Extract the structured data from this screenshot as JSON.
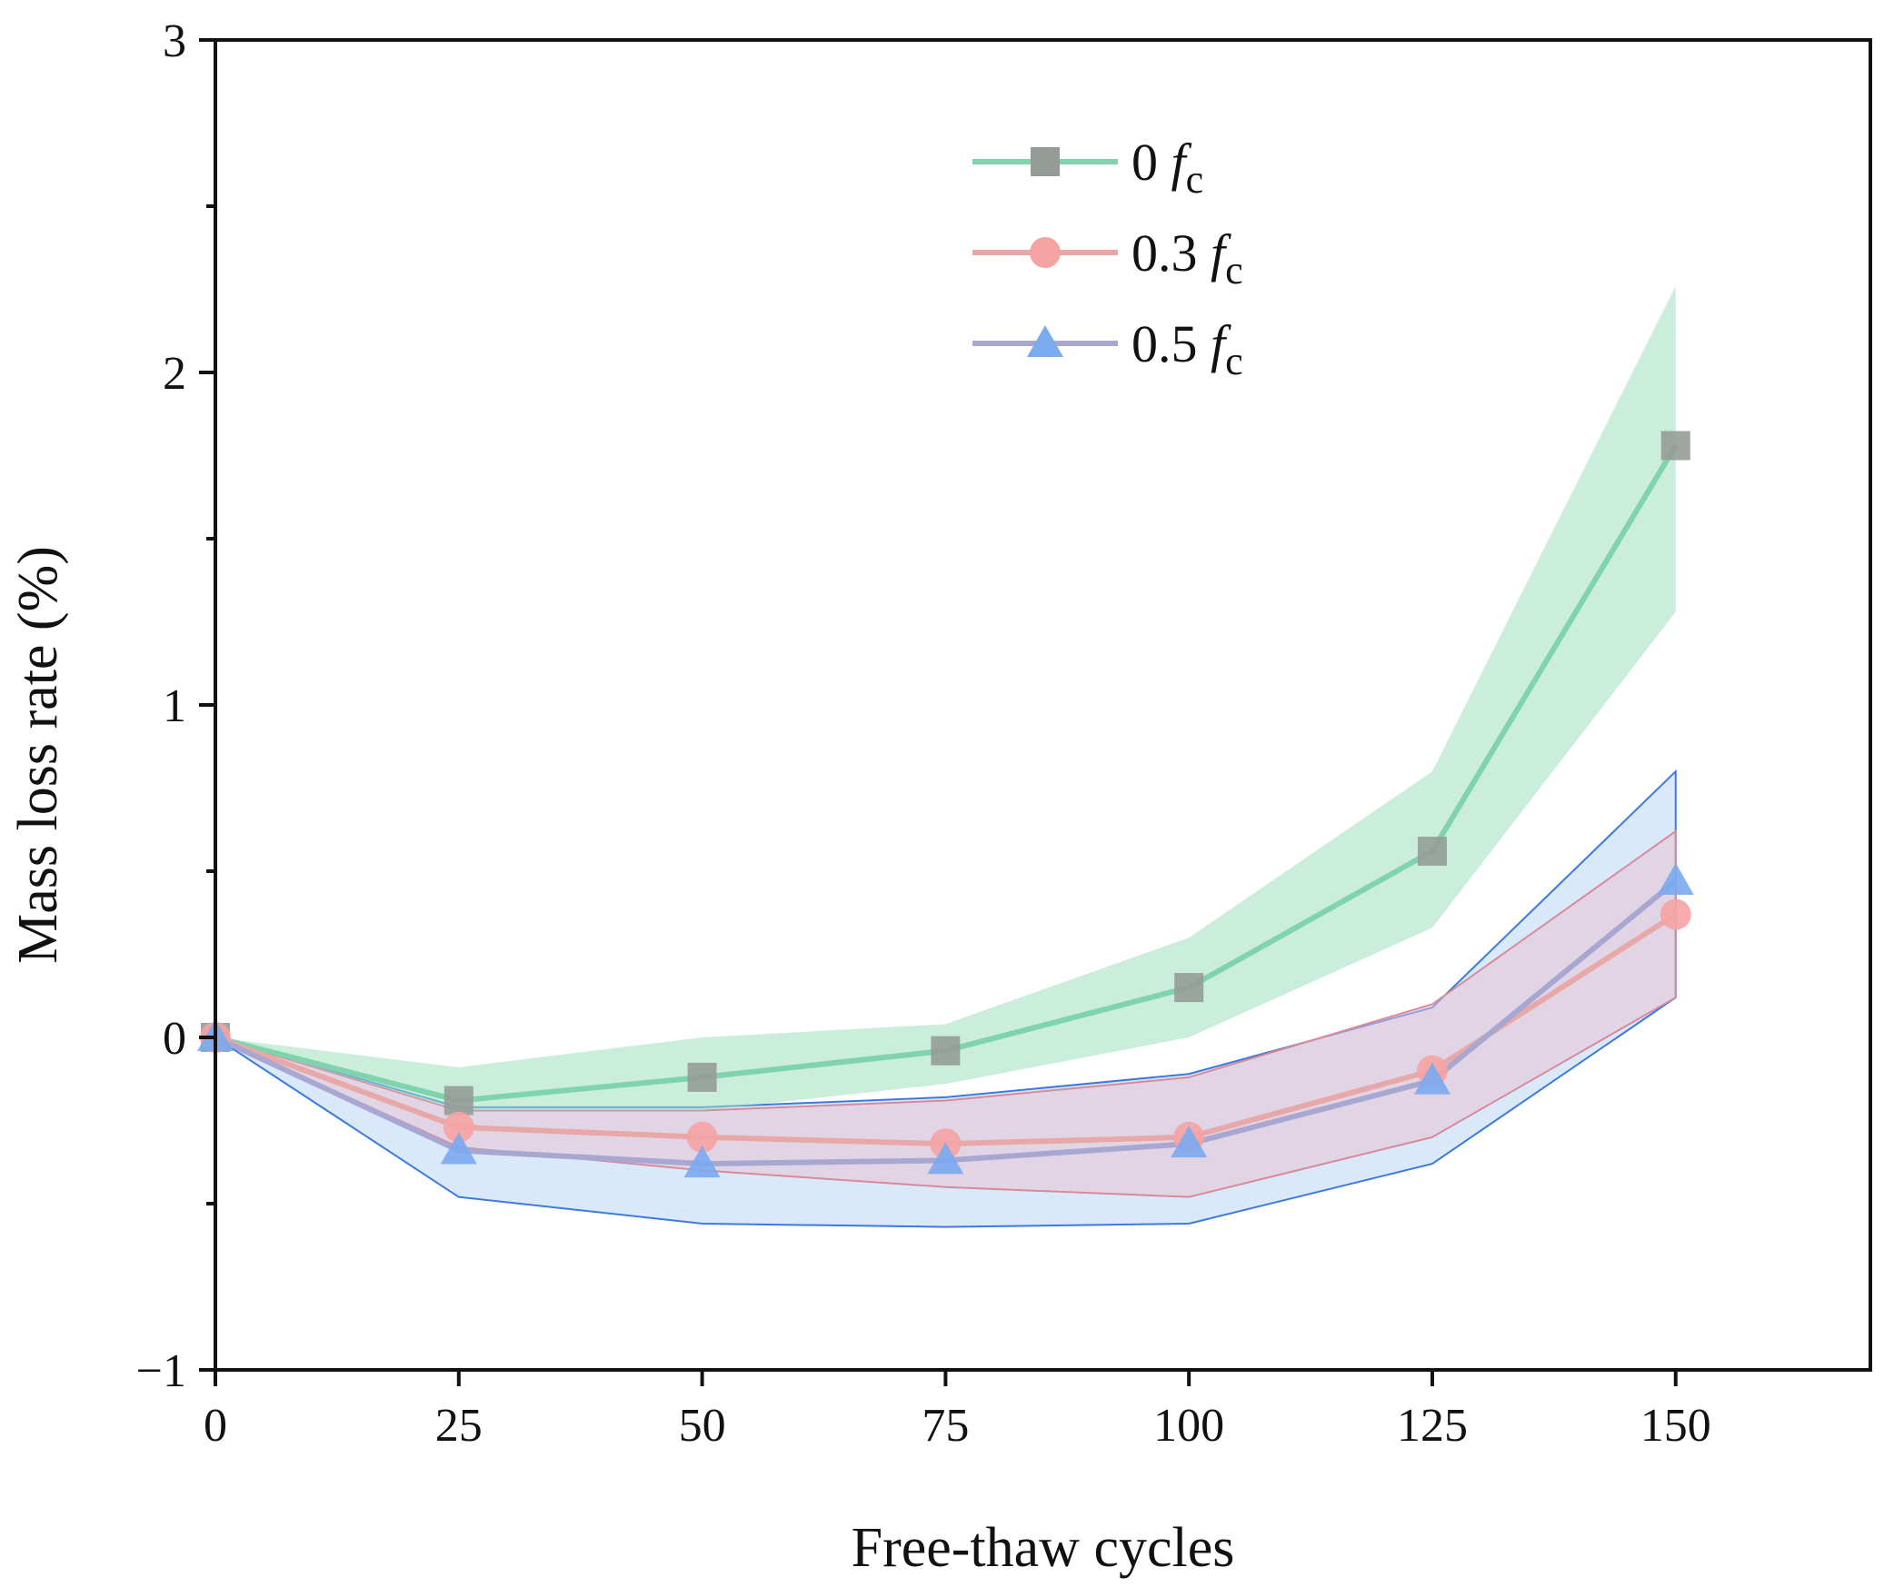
{
  "chart_data": {
    "type": "line",
    "title": "",
    "xlabel": "Free-thaw cycles",
    "ylabel": "Mass loss rate (%)",
    "xlim": [
      0,
      170
    ],
    "ylim": [
      -1,
      3
    ],
    "xticks": [
      0,
      25,
      50,
      75,
      100,
      125,
      150
    ],
    "yticks": [
      -1,
      0,
      1,
      2,
      3
    ],
    "xtick_labels": [
      "0",
      "25",
      "50",
      "75",
      "100",
      "125",
      "150"
    ],
    "ytick_labels": [
      "−1",
      "0",
      "1",
      "2",
      "3"
    ],
    "grid": false,
    "legend_position": "top-center",
    "x": [
      0,
      25,
      50,
      75,
      100,
      125,
      150
    ],
    "series": [
      {
        "name": "0 f",
        "subscript": "c",
        "marker": "square",
        "line_color": "#7fd3ad",
        "marker_color": "#959c98",
        "band_color": "#9fdfc0",
        "values": [
          0.0,
          -0.19,
          -0.12,
          -0.04,
          0.15,
          0.56,
          1.78
        ],
        "band_upper": [
          0.0,
          -0.09,
          0.0,
          0.04,
          0.3,
          0.8,
          2.26
        ],
        "band_lower": [
          0.0,
          -0.22,
          -0.22,
          -0.14,
          0.0,
          0.33,
          1.28
        ]
      },
      {
        "name": "0.3 f",
        "subscript": "c",
        "marker": "circle",
        "line_color": "#e8a8a8",
        "marker_color": "#f5a3a3",
        "band_color": "#e9c2cf",
        "values": [
          0.0,
          -0.27,
          -0.3,
          -0.32,
          -0.3,
          -0.1,
          0.37
        ],
        "band_upper": [
          0.0,
          -0.22,
          -0.22,
          -0.19,
          -0.12,
          0.1,
          0.62
        ],
        "band_lower": [
          0.0,
          -0.33,
          -0.4,
          -0.45,
          -0.48,
          -0.3,
          0.12
        ]
      },
      {
        "name": "0.5 f",
        "subscript": "c",
        "marker": "triangle",
        "line_color": "#a7a7d2",
        "marker_color": "#7aaaf0",
        "band_color": "#b3d4f5",
        "values": [
          0.0,
          -0.34,
          -0.38,
          -0.37,
          -0.32,
          -0.13,
          0.47
        ],
        "band_upper": [
          0.0,
          -0.21,
          -0.21,
          -0.18,
          -0.11,
          0.09,
          0.8
        ],
        "band_lower": [
          0.0,
          -0.48,
          -0.56,
          -0.57,
          -0.56,
          -0.38,
          0.12
        ]
      }
    ]
  }
}
